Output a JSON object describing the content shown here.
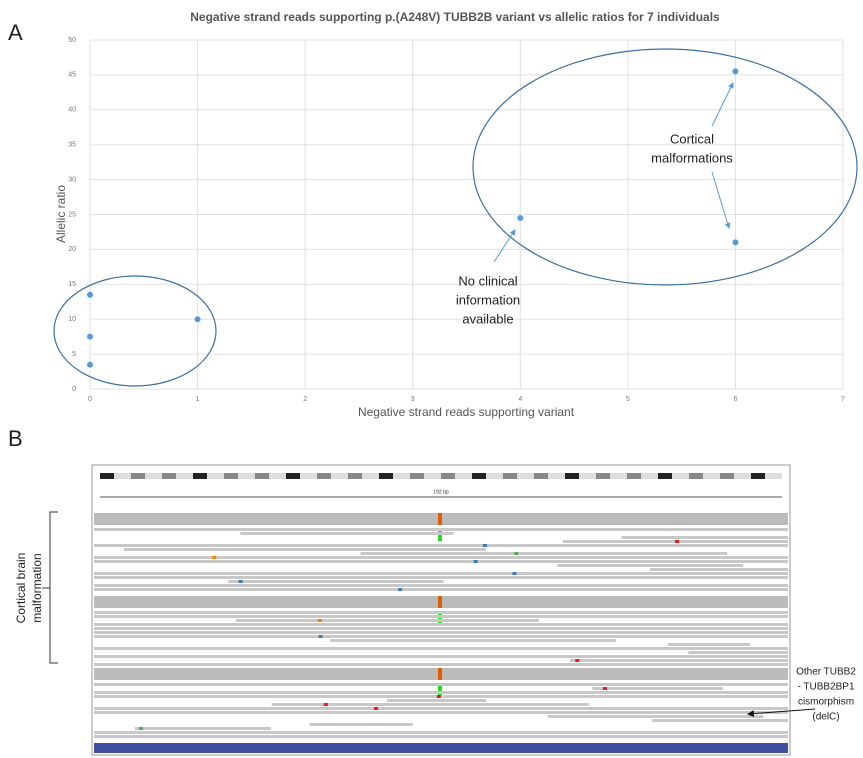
{
  "chart_data": {
    "type": "scatter",
    "title": "Negative strand reads supporting p.(A248V) TUBB2B variant vs allelic ratios for 7 individuals",
    "x_label": "Negative strand reads supporting variant",
    "y_label": "Allelic ratio",
    "x": [
      0,
      0,
      0,
      1,
      4,
      6,
      6
    ],
    "values": [
      13.5,
      7.5,
      3.5,
      10,
      24.5,
      45.5,
      21
    ],
    "color": "#5b9bd5",
    "xlim": [
      0,
      7
    ],
    "xticks": [
      0,
      1,
      2,
      3,
      4,
      5,
      6,
      7
    ],
    "ylim": [
      0,
      50
    ],
    "yticks": [
      0,
      5,
      10,
      15,
      20,
      25,
      30,
      35,
      40,
      45,
      50
    ],
    "grid": true,
    "annotations": [
      [
        "Cortical",
        "malformations"
      ],
      [
        "No clinical",
        "information",
        "available"
      ]
    ]
  },
  "figure": {
    "panel_a": "A",
    "panel_b": "B",
    "igv_span": "192 bp",
    "bracket_label": [
      "Cortical brain",
      "malformation"
    ],
    "side_note": [
      "Other TUBB2",
      "- TUBB2BP1",
      "cismorphism",
      "(delC)"
    ]
  }
}
